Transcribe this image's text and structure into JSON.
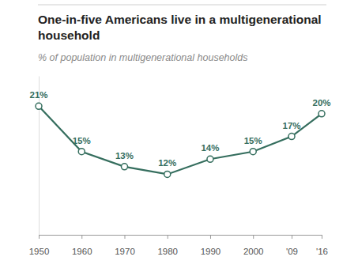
{
  "chart_data": {
    "type": "line",
    "title": "One-in-five Americans live in a multigenerational household",
    "subtitle": "% of population in multigenerational households",
    "x": [
      1950,
      1960,
      1970,
      1980,
      1990,
      2000,
      2009,
      2016
    ],
    "values": [
      21,
      15,
      13,
      12,
      14,
      15,
      17,
      20
    ],
    "value_labels": [
      "21%",
      "15%",
      "13%",
      "12%",
      "14%",
      "15%",
      "17%",
      "20%"
    ],
    "color": "#356e5e",
    "marker": "circle",
    "data_labels": true,
    "tick_labels": "x",
    "xlim": [
      1950,
      2016
    ],
    "xticks": [
      1950,
      1960,
      1970,
      1980,
      1990,
      2000,
      {
        "value": 2009,
        "label": "'09"
      },
      {
        "value": 2016,
        "label": "'16"
      }
    ],
    "ylim": [
      4,
      25
    ]
  }
}
